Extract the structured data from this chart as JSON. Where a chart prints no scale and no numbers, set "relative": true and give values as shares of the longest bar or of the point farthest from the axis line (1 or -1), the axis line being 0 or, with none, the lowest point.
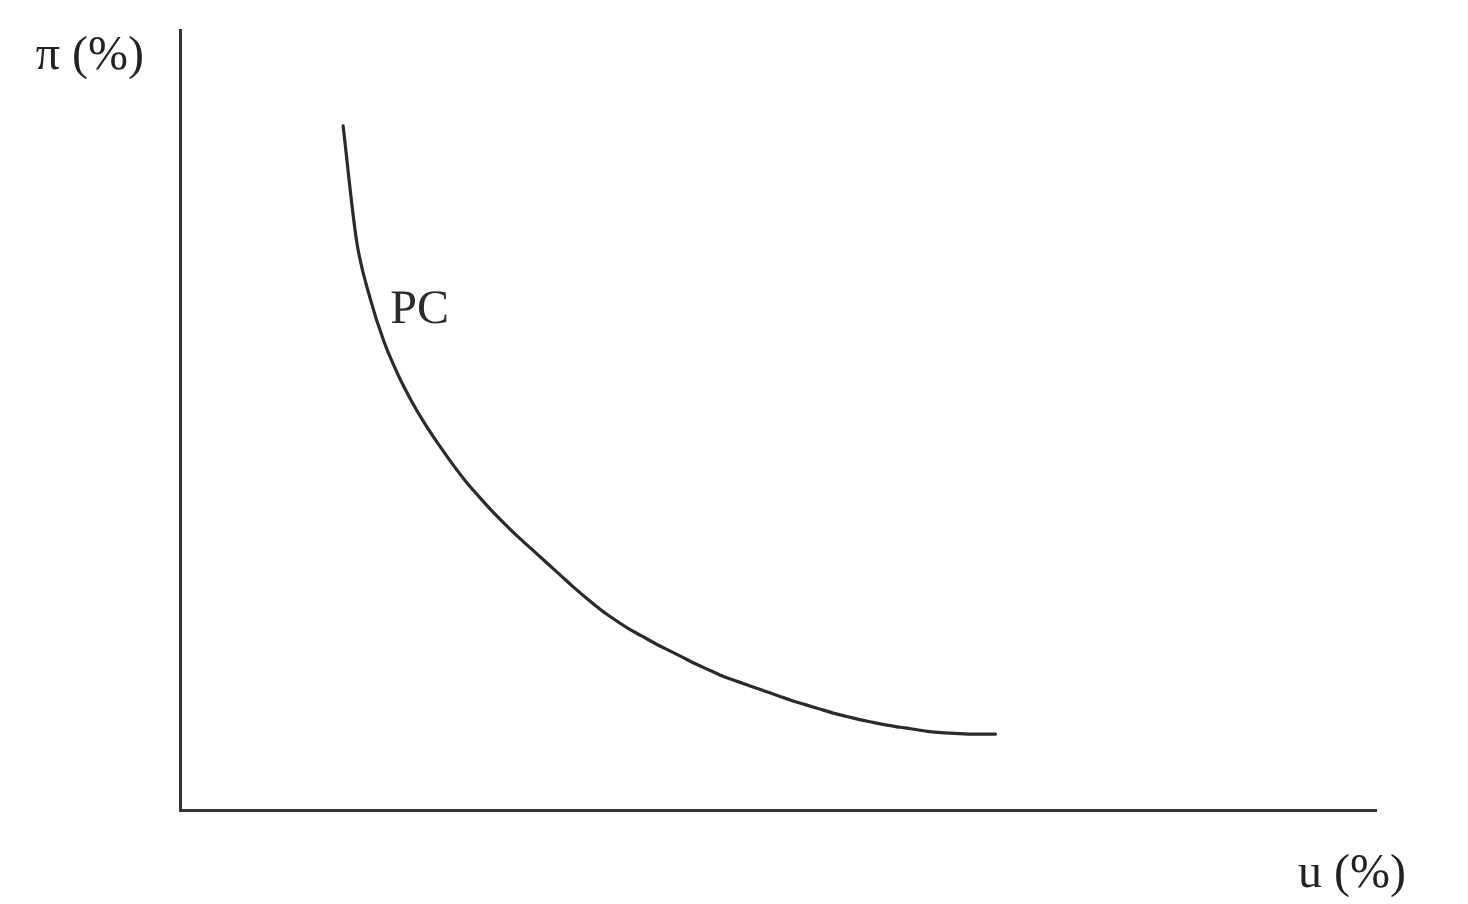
{
  "chart_data": {
    "type": "line",
    "xlabel": "u (%)",
    "ylabel": "π (%)",
    "relative": true,
    "marker": "none",
    "line_style": "solid",
    "categories": [
      null,
      null,
      null,
      null,
      null,
      null,
      null,
      null,
      null,
      null,
      null,
      null,
      null,
      null,
      null,
      null,
      null,
      null,
      null,
      null,
      null,
      null,
      null,
      null,
      null,
      null,
      null,
      null,
      null,
      null,
      null,
      null,
      null,
      null,
      null,
      null,
      null,
      null,
      null,
      null,
      null,
      null,
      null,
      null,
      null,
      null,
      null,
      null,
      null,
      null,
      null,
      null,
      null,
      null,
      null,
      null,
      null,
      null,
      null,
      null,
      null,
      null,
      null,
      null,
      null,
      null,
      null,
      null,
      null,
      null,
      null,
      null,
      null,
      null,
      null,
      null,
      null,
      null,
      null,
      null,
      null,
      null,
      null,
      null,
      null,
      null,
      null,
      null,
      null
    ],
    "series": [
      {
        "name": "PC",
        "color": "#2b2b2b",
        "values": [
          null,
          null,
          null,
          null,
          null,
          null,
          null,
          null,
          null,
          null,
          null,
          null,
          1,
          0.831,
          0.747,
          0.685,
          0.638,
          0.599,
          0.565,
          0.535,
          0.507,
          0.481,
          0.458,
          0.436,
          0.416,
          0.397,
          0.379,
          0.361,
          0.343,
          0.325,
          0.308,
          0.292,
          0.278,
          0.265,
          0.254,
          0.243,
          0.233,
          0.223,
          0.213,
          0.204,
          0.195,
          0.188,
          0.181,
          0.174,
          0.167,
          0.16,
          0.154,
          0.148,
          0.142,
          0.137,
          0.132,
          0.128,
          0.124,
          0.121,
          0.118,
          0.115,
          0.113,
          0.112,
          0.111,
          0.111,
          0.111,
          null,
          null,
          null,
          null,
          null,
          null,
          null,
          null,
          null,
          null,
          null,
          null,
          null,
          null,
          null,
          null,
          null,
          null,
          null,
          null,
          null,
          null,
          null,
          null,
          null,
          null,
          null,
          null
        ]
      }
    ]
  }
}
